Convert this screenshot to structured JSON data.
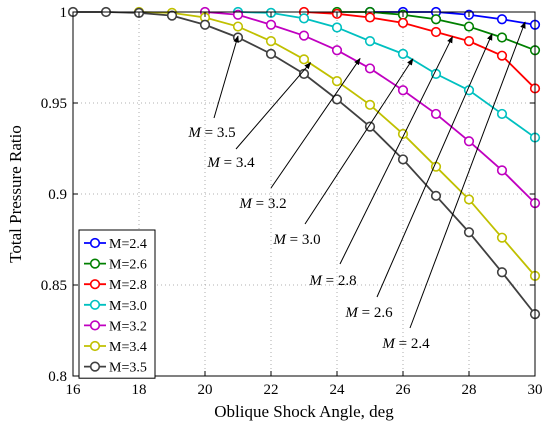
{
  "chart_data": {
    "type": "line",
    "xlabel": "Oblique Shock Angle, deg",
    "ylabel": "Total Pressure Ratio",
    "xlim": [
      16,
      30
    ],
    "ylim": [
      0.8,
      1.0
    ],
    "xticks": [
      16,
      18,
      20,
      22,
      24,
      26,
      28,
      30
    ],
    "yticks": [
      0.8,
      0.85,
      0.9,
      0.95,
      1.0
    ],
    "xtick_labels": [
      "16",
      "18",
      "20",
      "22",
      "24",
      "26",
      "28",
      "30"
    ],
    "ytick_labels": [
      "0.8",
      "0.85",
      "0.9",
      "0.95",
      "1"
    ],
    "grid": true,
    "legend_position": "bottom-left",
    "x": [
      16,
      17,
      18,
      19,
      20,
      21,
      22,
      23,
      24,
      25,
      26,
      27,
      28,
      29,
      30
    ],
    "series": [
      {
        "name": "M=2.4",
        "color": "#0000ff",
        "values": [
          null,
          null,
          null,
          null,
          null,
          null,
          null,
          null,
          null,
          1.0,
          1.0,
          1.0,
          0.9985,
          0.996,
          0.993
        ]
      },
      {
        "name": "M=2.6",
        "color": "#008000",
        "values": [
          null,
          null,
          null,
          null,
          null,
          null,
          null,
          null,
          1.0,
          1.0,
          0.9985,
          0.996,
          0.992,
          0.986,
          0.979
        ]
      },
      {
        "name": "M=2.8",
        "color": "#ff0000",
        "values": [
          null,
          null,
          null,
          null,
          null,
          null,
          null,
          1.0,
          0.999,
          0.997,
          0.994,
          0.989,
          0.984,
          0.976,
          0.958
        ]
      },
      {
        "name": "M=3.0",
        "color": "#00c0c0",
        "values": [
          null,
          null,
          null,
          null,
          null,
          1.0,
          0.9995,
          0.9965,
          0.9915,
          0.984,
          0.977,
          0.966,
          0.957,
          0.944,
          0.931
        ]
      },
      {
        "name": "M=3.2",
        "color": "#c000c0",
        "values": [
          null,
          null,
          null,
          null,
          1.0,
          0.9985,
          0.993,
          0.987,
          0.979,
          0.969,
          0.957,
          0.944,
          0.929,
          0.913,
          0.895
        ]
      },
      {
        "name": "M=3.4",
        "color": "#c0c000",
        "values": [
          null,
          null,
          1.0,
          0.9995,
          0.997,
          0.992,
          0.984,
          0.974,
          0.962,
          0.949,
          0.933,
          0.915,
          0.897,
          0.876,
          0.855
        ]
      },
      {
        "name": "M=3.5",
        "color": "#404040",
        "values": [
          1.0,
          1.0,
          0.9995,
          0.998,
          0.993,
          0.986,
          0.977,
          0.966,
          0.952,
          0.937,
          0.919,
          0.899,
          0.879,
          0.857,
          0.834
        ]
      }
    ],
    "annotations": [
      {
        "label": "M = 3.5",
        "series": "M=3.5",
        "x": 21.0,
        "y": 0.9868
      },
      {
        "label": "M = 3.4",
        "series": "M=3.4",
        "x": 23.2,
        "y": 0.9722
      },
      {
        "label": "M = 3.2",
        "series": "M=3.2",
        "x": 24.7,
        "y": 0.9745
      },
      {
        "label": "M = 3.0",
        "series": "M=3.0",
        "x": 26.3,
        "y": 0.9743
      },
      {
        "label": "M = 2.8",
        "series": "M=2.8",
        "x": 27.5,
        "y": 0.9865
      },
      {
        "label": "M = 2.6",
        "series": "M=2.6",
        "x": 28.7,
        "y": 0.988
      },
      {
        "label": "M = 2.4",
        "series": "M=2.4",
        "x": 29.7,
        "y": 0.9945
      }
    ]
  }
}
